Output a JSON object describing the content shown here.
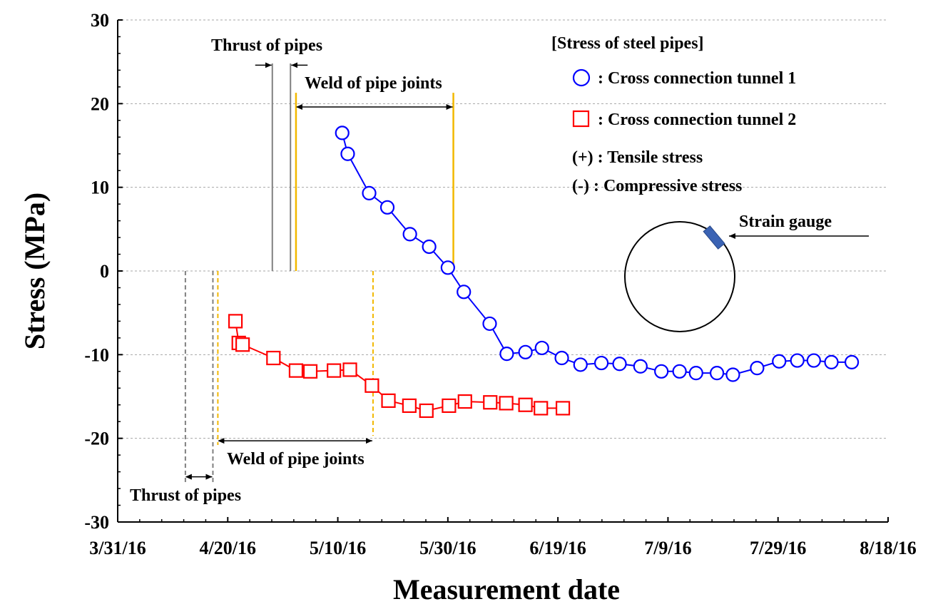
{
  "chart_data": {
    "type": "line",
    "title": "",
    "xlabel": "Measurement date",
    "ylabel": "Stress (MPa)",
    "x_ticks": [
      "3/31/16",
      "4/20/16",
      "5/10/16",
      "5/30/16",
      "6/19/16",
      "7/9/16",
      "7/29/16",
      "8/18/16"
    ],
    "y_ticks": [
      "30",
      "20",
      "10",
      "0",
      "-10",
      "-20",
      "-30"
    ],
    "ylim": [
      -30,
      30
    ],
    "xlim_days": [
      0,
      140
    ],
    "legend": {
      "heading": "[Stress of steel pipes]",
      "items": [
        ": Cross connection tunnel 1",
        ": Cross connection tunnel 2"
      ],
      "notes": [
        "(+) : Tensile stress",
        "(-)  : Compressive stress"
      ]
    },
    "series": [
      {
        "name": "Cross connection tunnel 1",
        "marker": "circle",
        "color": "#0000ff",
        "x_days": [
          40.8,
          41.8,
          45.7,
          49.0,
          53.1,
          56.6,
          60.0,
          62.9,
          67.6,
          70.7,
          74.1,
          77.1,
          80.7,
          84.1,
          87.9,
          91.2,
          95.0,
          98.8,
          102.1,
          105.1,
          108.9,
          111.8,
          116.2,
          120.2,
          123.5,
          126.5,
          129.7,
          133.4
        ],
        "values": [
          16.5,
          14.0,
          9.3,
          7.6,
          4.4,
          2.9,
          0.4,
          -2.5,
          -6.3,
          -9.9,
          -9.7,
          -9.2,
          -10.4,
          -11.2,
          -11.0,
          -11.1,
          -11.4,
          -12.0,
          -12.0,
          -12.2,
          -12.2,
          -12.4,
          -11.6,
          -10.8,
          -10.7,
          -10.7,
          -10.9,
          -10.9
        ]
      },
      {
        "name": "Cross connection tunnel 2",
        "marker": "square",
        "color": "#ff0000",
        "x_days": [
          21.4,
          22.0,
          22.7,
          28.3,
          32.4,
          35.0,
          39.3,
          42.2,
          46.2,
          49.2,
          53.0,
          56.1,
          60.2,
          63.1,
          67.7,
          70.6,
          74.1,
          76.9,
          80.9
        ],
        "values": [
          -6.0,
          -8.6,
          -8.8,
          -10.4,
          -11.9,
          -12.0,
          -11.9,
          -11.8,
          -13.7,
          -15.5,
          -16.1,
          -16.7,
          -16.1,
          -15.6,
          -15.7,
          -15.8,
          -16.0,
          -16.4,
          -16.4
        ]
      }
    ],
    "annotations": {
      "tunnel1_thrust": {
        "text": "Thrust of pipes",
        "x_start_days": 28.1,
        "x_end_days": 31.4
      },
      "tunnel1_weld": {
        "text": "Weld of pipe joints",
        "x_start_days": 32.4,
        "x_end_days": 61.0
      },
      "tunnel2_thrust": {
        "text": "Thrust of pipes",
        "x_start_days": 12.3,
        "x_end_days": 17.3
      },
      "tunnel2_weld": {
        "text": "Weld of pipe joints",
        "x_start_days": 18.2,
        "x_end_days": 46.4
      },
      "strain_gauge": {
        "text": "Strain gauge"
      }
    }
  }
}
